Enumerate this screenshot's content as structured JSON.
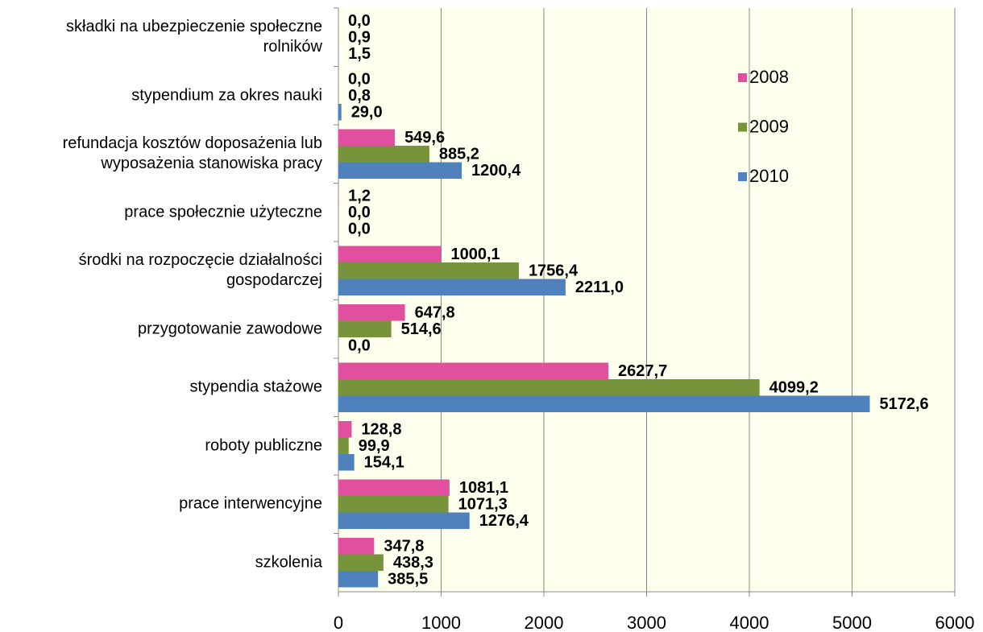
{
  "chart_data": {
    "type": "hbar",
    "categories": [
      "składki na ubezpieczenie społeczne\nrolników",
      "stypendium za okres nauki",
      "refundacja kosztów doposażenia lub\nwyposażenia stanowiska pracy",
      "prace społecznie użyteczne",
      "środki na rozpoczęcie działalności\ngospodarczej",
      "przygotowanie zawodowe",
      "stypendia stażowe",
      "roboty publiczne",
      "prace interwencyjne",
      "szkolenia"
    ],
    "series": [
      {
        "name": "2008",
        "color": "#e0509f",
        "values": [
          0,
          0,
          549.6,
          1.2,
          1000.1,
          647.8,
          2627.7,
          128.8,
          1081.1,
          347.8
        ],
        "value_labels": [
          "0,0",
          "0,0",
          "549,6",
          "1,2",
          "1000,1",
          "647,8",
          "2627,7",
          "128,8",
          "1081,1",
          "347,8"
        ]
      },
      {
        "name": "2009",
        "color": "#77933c",
        "values": [
          0.9,
          0.8,
          885.2,
          0,
          1756.4,
          514.6,
          4099.2,
          99.9,
          1071.3,
          438.3
        ],
        "value_labels": [
          "0,9",
          "0,8",
          "885,2",
          "0,0",
          "1756,4",
          "514,6",
          "4099,2",
          "99,9",
          "1071,3",
          "438,3"
        ]
      },
      {
        "name": "2010",
        "color": "#4f81bd",
        "values": [
          1.5,
          29.0,
          1200.4,
          0,
          2211.0,
          0,
          5172.6,
          154.1,
          1276.4,
          385.5
        ],
        "value_labels": [
          "1,5",
          "29,0",
          "1200,4",
          "0,0",
          "2211,0",
          "0,0",
          "5172,6",
          "154,1",
          "1276,4",
          "385,5"
        ]
      }
    ],
    "xlim": [
      0,
      6000
    ],
    "xticks": [
      0,
      1000,
      2000,
      3000,
      4000,
      5000,
      6000
    ],
    "grid": true,
    "legend": "right"
  }
}
